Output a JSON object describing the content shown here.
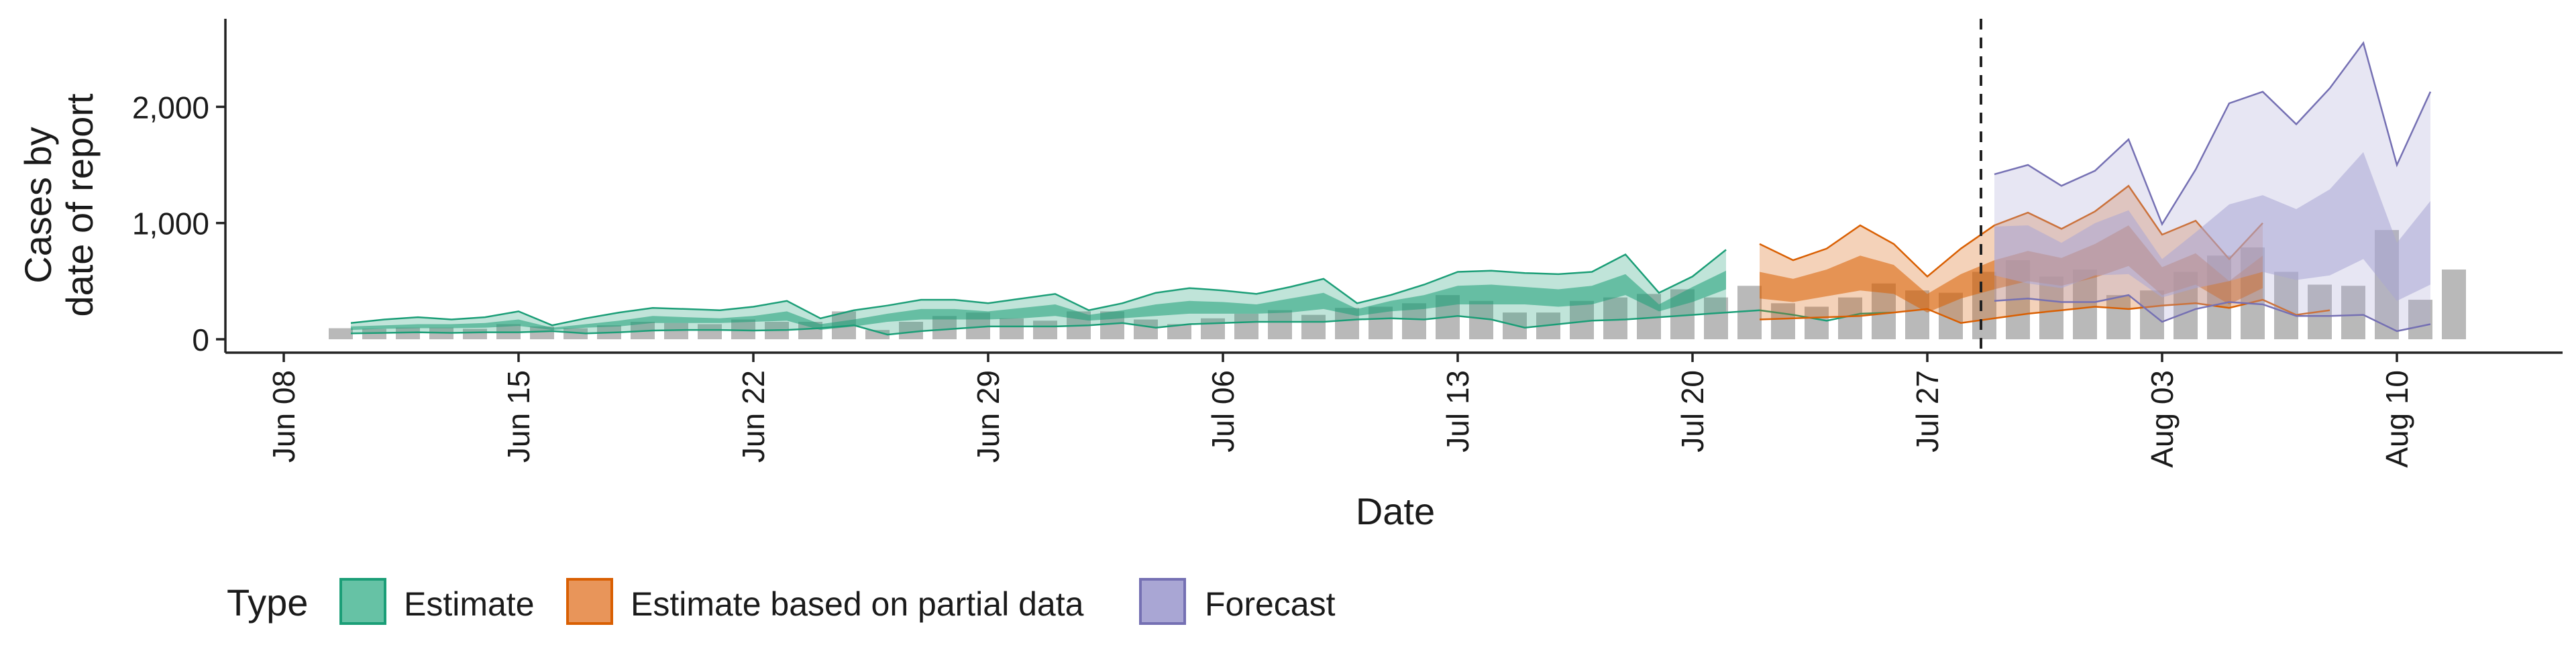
{
  "chart_data": {
    "type": "area",
    "xlabel": "Date",
    "ylabel_lines": [
      "Cases by",
      "date of report"
    ],
    "ylim": [
      0,
      2700
    ],
    "y_ticks": [
      0,
      1000,
      2000
    ],
    "y_tick_labels": [
      "0",
      "1,000",
      "2,000"
    ],
    "x_tick_labels": [
      "Jun 08",
      "Jun 15",
      "Jun 22",
      "Jun 29",
      "Jul 06",
      "Jul 13",
      "Jul 20",
      "Jul 27",
      "Aug 03",
      "Aug 10"
    ],
    "x_tick_offsets_days": [
      0,
      7,
      14,
      21,
      28,
      35,
      42,
      49,
      56,
      63
    ],
    "x_range_days": [
      -1.7,
      68.8
    ],
    "forecast_line_day": 50.6,
    "legend": {
      "title": "Type",
      "entries": [
        {
          "label": "Estimate",
          "fill": "#66c2a5",
          "stroke": "#1b9e77"
        },
        {
          "label": "Estimate based on partial data",
          "fill": "#e8955a",
          "stroke": "#d95f02"
        },
        {
          "label": "Forecast",
          "fill": "#a9a6d4",
          "stroke": "#7570b3"
        }
      ]
    },
    "reported_cases": {
      "start_day": 1.7,
      "values": [
        95,
        90,
        100,
        100,
        90,
        130,
        110,
        95,
        120,
        150,
        140,
        130,
        170,
        150,
        150,
        240,
        80,
        150,
        200,
        230,
        180,
        160,
        240,
        240,
        170,
        130,
        180,
        220,
        250,
        210,
        270,
        280,
        310,
        380,
        330,
        230,
        230,
        330,
        360,
        390,
        430,
        360,
        460,
        310,
        280,
        360,
        480,
        420,
        400,
        580,
        680,
        540,
        600,
        380,
        420,
        580,
        720,
        790,
        580,
        470,
        460,
        940,
        340,
        600
      ]
    },
    "series": [
      {
        "name": "Estimate",
        "color_fill": "#1b9e77",
        "color_line": "#1b9e77",
        "start_day": 2,
        "outer_lower": [
          50,
          55,
          60,
          55,
          60,
          60,
          70,
          50,
          60,
          75,
          80,
          80,
          75,
          80,
          95,
          120,
          40,
          70,
          90,
          110,
          110,
          110,
          120,
          140,
          100,
          130,
          140,
          150,
          150,
          150,
          170,
          180,
          170,
          200,
          170,
          100,
          130,
          160,
          170,
          190,
          210,
          230,
          250,
          210,
          160,
          220,
          230
        ],
        "outer_upper": [
          140,
          170,
          190,
          170,
          190,
          240,
          120,
          180,
          230,
          270,
          260,
          250,
          280,
          330,
          180,
          250,
          290,
          340,
          340,
          310,
          350,
          390,
          250,
          310,
          400,
          440,
          420,
          390,
          450,
          520,
          310,
          380,
          470,
          580,
          590,
          570,
          560,
          580,
          730,
          400,
          540,
          770
        ],
        "inner_lower": [
          80,
          90,
          95,
          95,
          100,
          115,
          80,
          100,
          110,
          140,
          140,
          140,
          150,
          160,
          80,
          110,
          150,
          170,
          170,
          170,
          180,
          200,
          160,
          180,
          200,
          220,
          220,
          220,
          230,
          260,
          200,
          240,
          260,
          300,
          300,
          300,
          280,
          300,
          380,
          240,
          320,
          430
        ],
        "inner_upper": [
          110,
          120,
          130,
          130,
          140,
          170,
          100,
          130,
          160,
          200,
          190,
          180,
          200,
          240,
          130,
          170,
          220,
          260,
          260,
          240,
          270,
          300,
          210,
          250,
          300,
          330,
          320,
          300,
          350,
          400,
          260,
          330,
          380,
          460,
          470,
          450,
          430,
          460,
          560,
          300,
          450,
          590
        ]
      },
      {
        "name": "Estimate based on partial data",
        "color_fill": "#d95f02",
        "color_line": "#d95f02",
        "start_day": 44,
        "outer_lower": [
          170,
          180,
          190,
          200,
          230,
          260,
          140,
          180,
          220,
          250,
          280,
          260,
          290,
          310,
          270,
          340,
          210,
          250
        ],
        "outer_upper": [
          820,
          680,
          780,
          980,
          820,
          540,
          780,
          980,
          1090,
          950,
          1100,
          1320,
          900,
          1020,
          690,
          1000
        ],
        "inner_lower": [
          350,
          320,
          370,
          420,
          390,
          230,
          350,
          430,
          500,
          460,
          530,
          630,
          380,
          470,
          300,
          440
        ],
        "inner_upper": [
          580,
          520,
          600,
          720,
          640,
          390,
          560,
          680,
          760,
          700,
          820,
          980,
          620,
          740,
          500,
          720
        ]
      },
      {
        "name": "Forecast",
        "color_fill": "#a9a6d4",
        "color_line": "#7570b3",
        "start_day": 51,
        "outer_lower": [
          330,
          350,
          320,
          320,
          380,
          150,
          260,
          320,
          300,
          200,
          200,
          210,
          70,
          130
        ],
        "outer_upper": [
          1420,
          1500,
          1320,
          1450,
          1720,
          990,
          1460,
          2030,
          2130,
          1850,
          2160,
          2550,
          1500,
          2130
        ],
        "inner_lower": [
          550,
          480,
          440,
          550,
          560,
          360,
          440,
          500,
          580,
          510,
          550,
          690,
          330,
          470
        ],
        "inner_upper": [
          970,
          980,
          830,
          1000,
          1110,
          690,
          920,
          1160,
          1240,
          1120,
          1290,
          1610,
          830,
          1190
        ]
      }
    ]
  }
}
